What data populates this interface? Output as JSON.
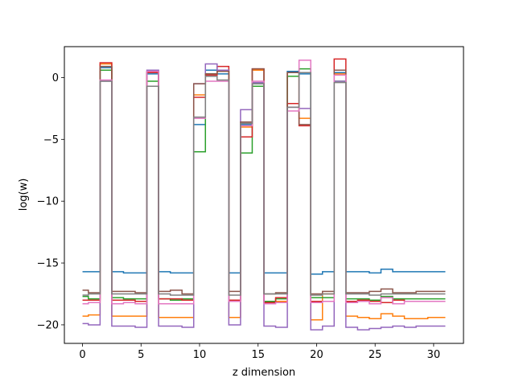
{
  "chart_data": {
    "type": "line",
    "style": "step",
    "xlabel": "z dimension",
    "ylabel": "log(w)",
    "xlim": [
      -1.55,
      32.55
    ],
    "ylim": [
      -21.5,
      2.5
    ],
    "xticks": [
      0,
      5,
      10,
      15,
      20,
      25,
      30
    ],
    "yticks": [
      -20,
      -15,
      -10,
      -5,
      0
    ],
    "grid": false,
    "legend": "none",
    "x": [
      0,
      1,
      2,
      3,
      4,
      5,
      6,
      7,
      8,
      9,
      10,
      11,
      12,
      13,
      14,
      15,
      16,
      17,
      18,
      19,
      20,
      21,
      22,
      23,
      24,
      25,
      26,
      27,
      28,
      29,
      30,
      31
    ],
    "series": [
      {
        "color": "#1f77b4",
        "values": [
          -15.7,
          -15.7,
          0.8,
          -15.7,
          -15.8,
          -15.8,
          0.3,
          -15.7,
          -15.8,
          -15.8,
          -3.8,
          0.6,
          0.3,
          -15.8,
          -3.8,
          -0.5,
          -15.8,
          -15.8,
          0.5,
          0.3,
          -15.9,
          -15.7,
          0.4,
          -15.7,
          -15.7,
          -15.8,
          -15.5,
          -15.7,
          -15.7,
          -15.7,
          -15.7,
          -15.7
        ]
      },
      {
        "color": "#ff7f0e",
        "values": [
          -19.3,
          -19.2,
          1.1,
          -19.3,
          -19.3,
          -19.3,
          0.4,
          -19.4,
          -19.4,
          -19.4,
          -1.4,
          0.3,
          0.5,
          -19.4,
          -4.0,
          0.6,
          -18.1,
          -18.1,
          0.4,
          -3.3,
          -19.6,
          -17.5,
          0.3,
          -19.3,
          -19.4,
          -19.5,
          -19.1,
          -19.3,
          -19.5,
          -19.5,
          -19.4,
          -19.4
        ]
      },
      {
        "color": "#2ca02c",
        "values": [
          -17.7,
          -17.9,
          0.6,
          -17.8,
          -17.9,
          -17.9,
          -0.3,
          -17.9,
          -18.0,
          -17.9,
          -6.0,
          0.3,
          0.6,
          -18.0,
          -6.1,
          -0.7,
          -18.1,
          -17.9,
          0.1,
          0.7,
          -17.8,
          -17.8,
          -0.3,
          -17.9,
          -17.9,
          -18.0,
          -17.7,
          -17.9,
          -17.9,
          -17.9,
          -17.9,
          -17.9
        ]
      },
      {
        "color": "#d62728",
        "values": [
          -18.0,
          -18.0,
          1.2,
          -18.0,
          -18.0,
          -18.1,
          0.4,
          -17.9,
          -17.9,
          -18.0,
          -1.6,
          0.2,
          0.9,
          -18.0,
          -4.8,
          0.7,
          -18.2,
          -17.8,
          -2.1,
          -3.9,
          -18.1,
          -18.1,
          1.5,
          -18.1,
          -18.0,
          -18.1,
          -18.2,
          -18.0,
          -18.1,
          -18.1,
          -18.1,
          -18.1
        ]
      },
      {
        "color": "#9467bd",
        "values": [
          -19.9,
          -20.0,
          -0.3,
          -20.1,
          -20.1,
          -20.2,
          0.6,
          -20.1,
          -20.1,
          -20.2,
          -0.5,
          1.1,
          0.6,
          -20.0,
          -2.6,
          -0.4,
          -20.1,
          -20.2,
          -2.4,
          -2.5,
          -20.4,
          -20.1,
          -0.3,
          -20.2,
          -20.4,
          -20.3,
          -20.2,
          -20.1,
          -20.2,
          -20.1,
          -20.1,
          -20.1
        ]
      },
      {
        "color": "#8c564b",
        "values": [
          -17.2,
          -17.4,
          0.9,
          -17.3,
          -17.3,
          -17.4,
          0.5,
          -17.3,
          -17.2,
          -17.5,
          -0.5,
          0.3,
          0.5,
          -17.3,
          -3.6,
          0.7,
          -17.5,
          -17.4,
          0.4,
          -3.8,
          -17.5,
          -17.3,
          0.6,
          -17.4,
          -17.4,
          -17.3,
          -17.1,
          -17.4,
          -17.4,
          -17.3,
          -17.3,
          -17.3
        ]
      },
      {
        "color": "#e377c2",
        "values": [
          -18.3,
          -18.2,
          -0.2,
          -18.3,
          -18.2,
          -18.3,
          0.5,
          -18.3,
          -18.3,
          -18.3,
          -3.3,
          -0.3,
          -0.3,
          -18.1,
          -3.9,
          -0.3,
          -18.3,
          -18.2,
          -2.7,
          1.4,
          -18.2,
          -18.1,
          0.2,
          -18.2,
          -18.1,
          -18.3,
          -17.8,
          -18.3,
          -18.1,
          -18.1,
          -18.1,
          -18.1
        ]
      },
      {
        "color": "#7f7f7f",
        "values": [
          -17.6,
          -17.5,
          -0.3,
          -17.5,
          -17.5,
          -17.5,
          -0.7,
          -17.5,
          -17.6,
          -17.6,
          -3.2,
          0.1,
          -0.2,
          -17.6,
          -3.7,
          -0.5,
          -17.5,
          -17.5,
          -2.4,
          0.4,
          -17.6,
          -17.5,
          -0.4,
          -17.5,
          -17.5,
          -17.6,
          -17.5,
          -17.5,
          -17.5,
          -17.5,
          -17.5,
          -17.5
        ]
      }
    ]
  }
}
